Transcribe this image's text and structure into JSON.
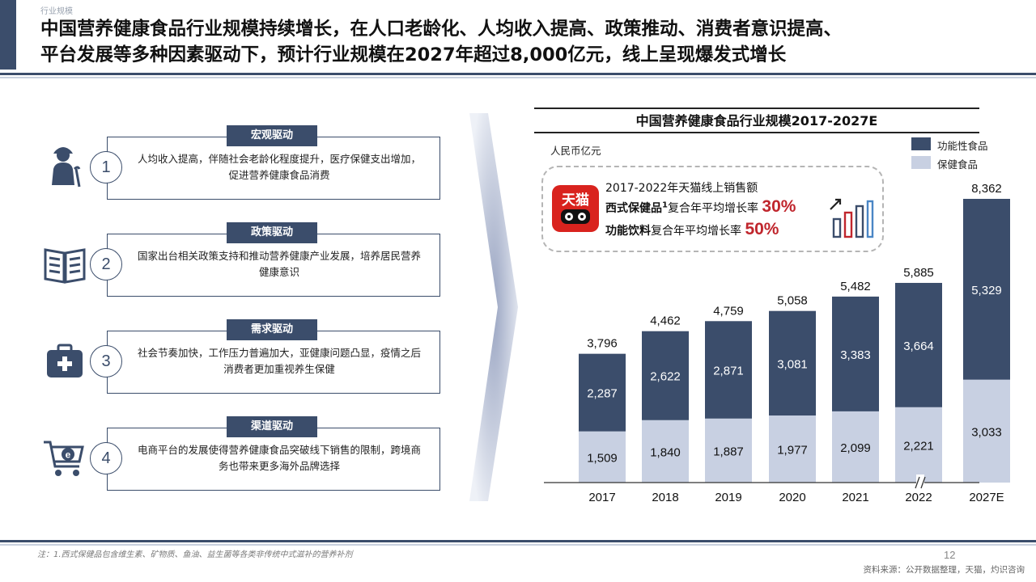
{
  "header": {
    "section_label": "行业规模",
    "title_line1": "中国营养健康食品行业规模持续增长，在人口老龄化、人均收入提高、政策推动、消费者意识提高、",
    "title_line2": "平台发展等多种因素驱动下，预计行业规模在2027年超过8,000亿元，线上呈现爆发式增长"
  },
  "drivers": [
    {
      "tag": "宏观驱动",
      "num": "1",
      "text": "人均收入提高，伴随社会老龄化程度提升，医疗保健支出增加，促进营养健康食品消费",
      "icon": "elderly-person-icon"
    },
    {
      "tag": "政策驱动",
      "num": "2",
      "text": "国家出台相关政策支持和推动营养健康产业发展，培养居民营养健康意识",
      "icon": "policy-book-icon"
    },
    {
      "tag": "需求驱动",
      "num": "3",
      "text": "社会节奏加快，工作压力普遍加大，亚健康问题凸显，疫情之后消费者更加重视养生保健",
      "icon": "medical-kit-icon"
    },
    {
      "tag": "渠道驱动",
      "num": "4",
      "text": "电商平台的发展使得营养健康食品突破线下销售的限制，跨境商务也带来更多海外品牌选择",
      "icon": "ecommerce-cart-icon"
    }
  ],
  "callout": {
    "logo_text": "天猫",
    "heading": "2017-2022年天猫线上销售额",
    "row1_bold": "西式保健品",
    "row1_sup": "1",
    "row1_text": "复合年平均增长率",
    "row1_pct": "30%",
    "row2_bold": "功能饮料",
    "row2_text": "复合年平均增长率",
    "row2_pct": "50%"
  },
  "colors": {
    "primary": "#3b4d6b",
    "functional_food": "#3b4d6b",
    "health_food": "#c8d0e2",
    "accent_red": "#c0262d"
  },
  "chart_data": {
    "type": "bar",
    "stacked": true,
    "title": "中国营养健康食品行业规模2017-2027E",
    "unit": "人民币亿元",
    "categories": [
      "2017",
      "2018",
      "2019",
      "2020",
      "2021",
      "2022",
      "2027E"
    ],
    "series": [
      {
        "name": "保健食品",
        "values": [
          1509,
          1840,
          1887,
          1977,
          2099,
          2221,
          3033
        ],
        "labels": [
          "1,509",
          "1,840",
          "1,887",
          "1,977",
          "2,099",
          "2,221",
          "3,033"
        ]
      },
      {
        "name": "功能性食品",
        "values": [
          2287,
          2622,
          2871,
          3081,
          3383,
          3664,
          5329
        ],
        "labels": [
          "2,287",
          "2,622",
          "2,871",
          "3,081",
          "3,383",
          "3,664",
          "5,329"
        ]
      }
    ],
    "totals": [
      "3,796",
      "4,462",
      "4,759",
      "5,058",
      "5,482",
      "5,885",
      "8,362"
    ],
    "legend": [
      "功能性食品",
      "保健食品"
    ],
    "legend_position": "top-right",
    "axis_break_before": "2027E",
    "grid": false
  },
  "footer": {
    "footnote": "注：1.西式保健品包含维生素、矿物质、鱼油、益生菌等各类非传统中式滋补的营养补剂",
    "page_number": "12",
    "source": "资料来源：公开数据整理，天猫，灼识咨询"
  }
}
